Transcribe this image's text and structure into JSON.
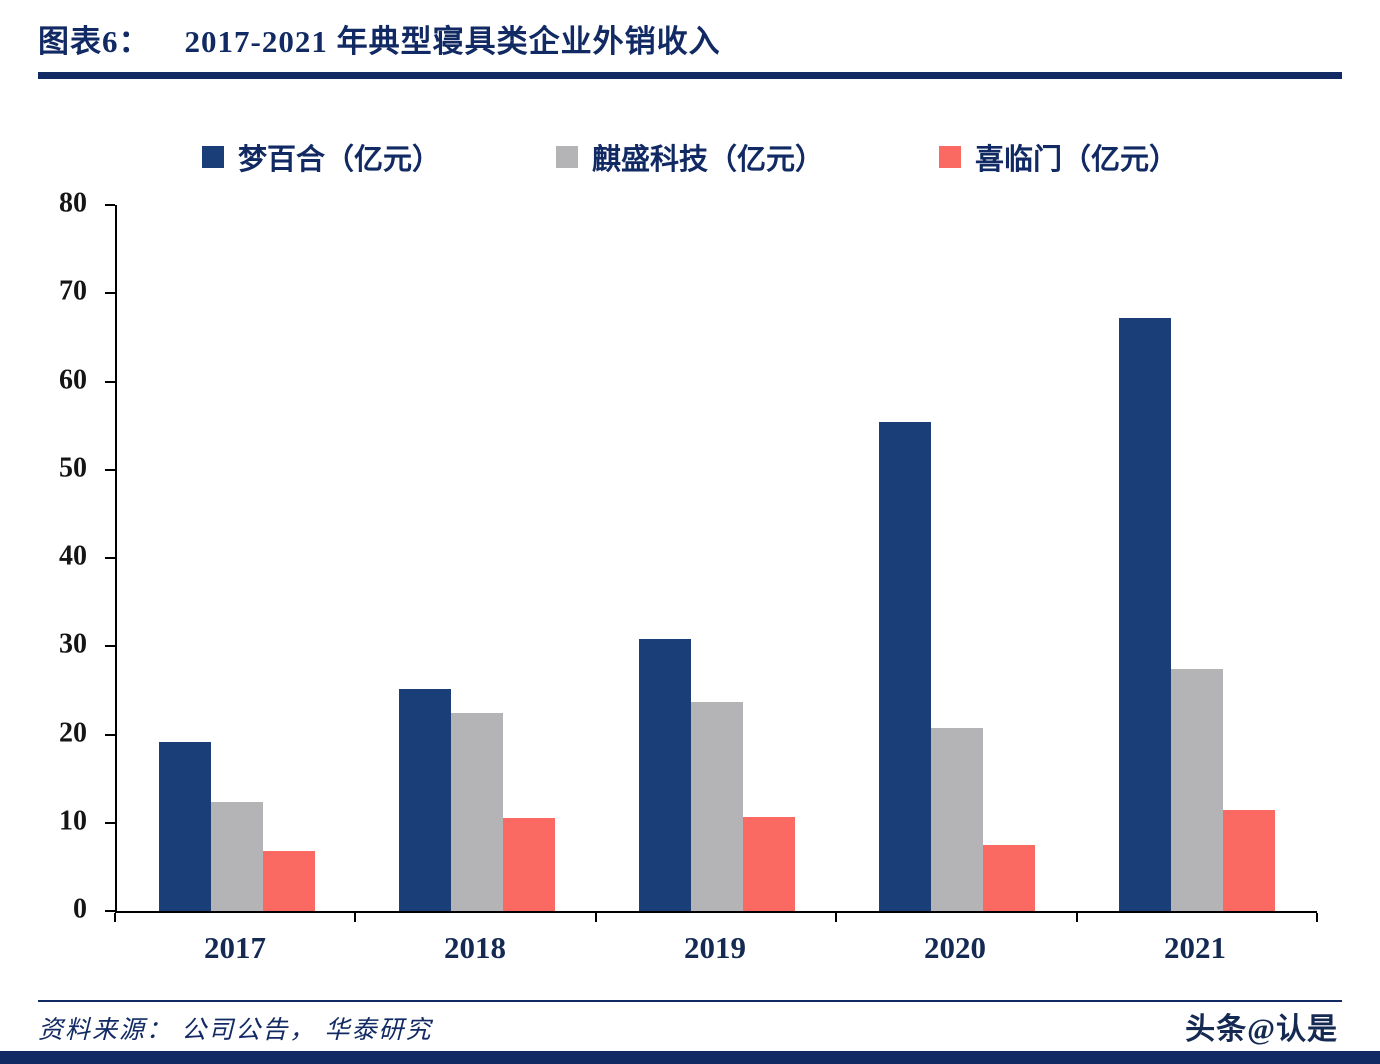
{
  "header": {
    "label": "图表6：",
    "title": "2017-2021 年典型寝具类企业外销收入"
  },
  "chart_data": {
    "type": "bar",
    "title": "2017-2021 年典型寝具类企业外销收入",
    "categories": [
      "2017",
      "2018",
      "2019",
      "2020",
      "2021"
    ],
    "series": [
      {
        "name": "梦百合（亿元）",
        "color": "#1a3e78",
        "values": [
          19.1,
          25.2,
          30.8,
          55.4,
          67.2
        ]
      },
      {
        "name": "麒盛科技（亿元）",
        "color": "#b4b4b6",
        "values": [
          12.4,
          22.4,
          23.7,
          20.7,
          27.4
        ]
      },
      {
        "name": "喜临门（亿元）",
        "color": "#fa6a63",
        "values": [
          6.8,
          10.5,
          10.6,
          7.5,
          11.5
        ]
      }
    ],
    "ylim": [
      0,
      80
    ],
    "ytick_step": 10,
    "xlabel": "",
    "ylabel": "",
    "grid": false,
    "legend_position": "top"
  },
  "footer": {
    "source": "资料来源： 公司公告， 华泰研究",
    "watermark": "头条@认是"
  },
  "colors": {
    "navy": "#122a63",
    "bar_blue": "#1a3e78",
    "bar_gray": "#b4b4b6",
    "bar_red": "#fa6a63",
    "axis": "#000000",
    "background": "#ffffff"
  }
}
